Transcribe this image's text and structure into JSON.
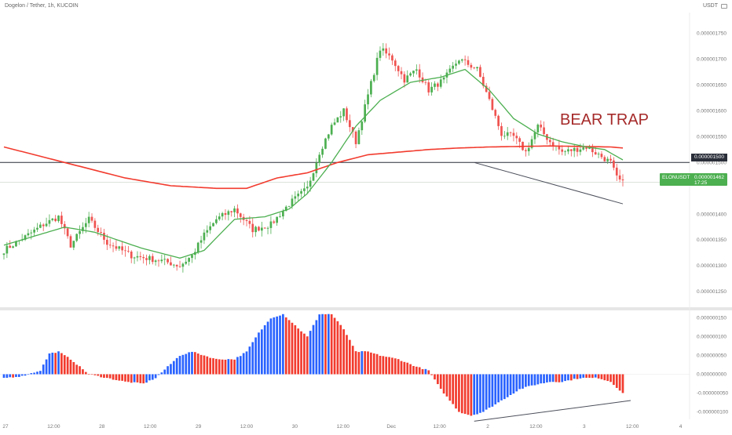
{
  "header": {
    "title": "Dogelon / Tether, 1h, KUCOIN",
    "currency": "USDT"
  },
  "annotations": {
    "bear_trap": "BEAR TRAP"
  },
  "price_tags": {
    "horizontal_level": "0.000001500",
    "ticker_symbol": "ELONUSDT",
    "last_price": "0.000001462",
    "countdown": "17:25"
  },
  "colors": {
    "up": "#4CAF50",
    "down": "#EF5350",
    "ema_fast": "#4CAF50",
    "ma_slow": "#F23B2E",
    "osc_up": "#2962FF",
    "osc_down": "#F23B2E",
    "level_line": "#2A2E39",
    "trend_line": "#4B4E5A",
    "axis_text": "#777777"
  },
  "chart_data": [
    {
      "type": "candlestick",
      "ylim": [
        1.22e-06,
        1.79e-06
      ],
      "y_ticks": [
        "0.000001750",
        "0.000001700",
        "0.000001650",
        "0.000001600",
        "0.000001550",
        "0.000001500",
        "0.000001400",
        "0.000001350",
        "0.000001300",
        "0.000001250"
      ],
      "x_ticks": [
        "27",
        "12:00",
        "28",
        "12:00",
        "29",
        "12:00",
        "30",
        "12:00",
        "Dec",
        "12:00",
        "2",
        "12:00",
        "3",
        "12:00",
        "4"
      ],
      "horizontal_line": 1.5e-06,
      "price_anchors": [
        [
          0,
          1.33
        ],
        [
          8,
          1.36
        ],
        [
          13,
          1.38
        ],
        [
          18,
          1.395
        ],
        [
          22,
          1.34
        ],
        [
          28,
          1.39
        ],
        [
          34,
          1.345
        ],
        [
          42,
          1.32
        ],
        [
          52,
          1.31
        ],
        [
          58,
          1.3
        ],
        [
          62,
          1.32
        ],
        [
          66,
          1.36
        ],
        [
          70,
          1.39
        ],
        [
          76,
          1.41
        ],
        [
          82,
          1.37
        ],
        [
          88,
          1.38
        ],
        [
          94,
          1.42
        ],
        [
          100,
          1.45
        ],
        [
          104,
          1.52
        ],
        [
          108,
          1.57
        ],
        [
          112,
          1.6
        ],
        [
          116,
          1.54
        ],
        [
          120,
          1.63
        ],
        [
          124,
          1.72
        ],
        [
          128,
          1.7
        ],
        [
          132,
          1.66
        ],
        [
          136,
          1.68
        ],
        [
          140,
          1.64
        ],
        [
          145,
          1.66
        ],
        [
          150,
          1.7
        ],
        [
          156,
          1.68
        ],
        [
          160,
          1.62
        ],
        [
          164,
          1.555
        ],
        [
          168,
          1.55
        ],
        [
          172,
          1.52
        ],
        [
          176,
          1.57
        ],
        [
          180,
          1.54
        ],
        [
          184,
          1.52
        ],
        [
          188,
          1.525
        ],
        [
          192,
          1.53
        ],
        [
          196,
          1.515
        ],
        [
          200,
          1.5
        ],
        [
          202,
          1.47
        ],
        [
          204,
          1.46
        ]
      ],
      "ema_anchors": [
        [
          0,
          1.34
        ],
        [
          20,
          1.375
        ],
        [
          30,
          1.365
        ],
        [
          45,
          1.335
        ],
        [
          58,
          1.315
        ],
        [
          66,
          1.33
        ],
        [
          76,
          1.39
        ],
        [
          86,
          1.395
        ],
        [
          94,
          1.41
        ],
        [
          100,
          1.44
        ],
        [
          108,
          1.5
        ],
        [
          116,
          1.57
        ],
        [
          124,
          1.62
        ],
        [
          134,
          1.655
        ],
        [
          144,
          1.665
        ],
        [
          152,
          1.68
        ],
        [
          160,
          1.64
        ],
        [
          168,
          1.585
        ],
        [
          176,
          1.555
        ],
        [
          184,
          1.54
        ],
        [
          192,
          1.53
        ],
        [
          198,
          1.525
        ],
        [
          204,
          1.505
        ]
      ],
      "ma_anchors": [
        [
          0,
          1.53
        ],
        [
          20,
          1.5
        ],
        [
          40,
          1.47
        ],
        [
          55,
          1.455
        ],
        [
          70,
          1.45
        ],
        [
          80,
          1.45
        ],
        [
          90,
          1.47
        ],
        [
          100,
          1.48
        ],
        [
          110,
          1.5
        ],
        [
          120,
          1.515
        ],
        [
          130,
          1.52
        ],
        [
          140,
          1.525
        ],
        [
          150,
          1.528
        ],
        [
          160,
          1.53
        ],
        [
          170,
          1.531
        ],
        [
          180,
          1.532
        ],
        [
          190,
          1.531
        ],
        [
          200,
          1.53
        ],
        [
          204,
          1.528
        ]
      ],
      "trend_line": [
        [
          1.5e-06,
          155
        ],
        [
          1.42e-06,
          204
        ]
      ]
    },
    {
      "type": "bar",
      "name_hint": "oscillator",
      "ylim": [
        -1.2e-07,
        1.7e-07
      ],
      "y_ticks": [
        "0.000000150",
        "0.000000100",
        "0.000000050",
        "0.000000000",
        "-0.000000050",
        "-0.000000100"
      ],
      "anchors": [
        [
          0,
          -0.01
        ],
        [
          6,
          -0.005
        ],
        [
          12,
          0.01
        ],
        [
          15,
          0.055
        ],
        [
          18,
          0.06
        ],
        [
          22,
          0.04
        ],
        [
          28,
          0.0
        ],
        [
          34,
          -0.01
        ],
        [
          40,
          -0.02
        ],
        [
          46,
          -0.025
        ],
        [
          50,
          -0.01
        ],
        [
          54,
          0.02
        ],
        [
          58,
          0.05
        ],
        [
          62,
          0.06
        ],
        [
          66,
          0.05
        ],
        [
          70,
          0.04
        ],
        [
          76,
          0.04
        ],
        [
          80,
          0.06
        ],
        [
          84,
          0.11
        ],
        [
          88,
          0.15
        ],
        [
          92,
          0.16
        ],
        [
          96,
          0.13
        ],
        [
          100,
          0.1
        ],
        [
          104,
          0.16
        ],
        [
          108,
          0.16
        ],
        [
          112,
          0.12
        ],
        [
          116,
          0.06
        ],
        [
          120,
          0.06
        ],
        [
          124,
          0.05
        ],
        [
          130,
          0.04
        ],
        [
          136,
          0.02
        ],
        [
          140,
          0.01
        ],
        [
          144,
          -0.04
        ],
        [
          150,
          -0.1
        ],
        [
          154,
          -0.11
        ],
        [
          158,
          -0.1
        ],
        [
          162,
          -0.08
        ],
        [
          166,
          -0.06
        ],
        [
          170,
          -0.04
        ],
        [
          174,
          -0.03
        ],
        [
          180,
          -0.02
        ],
        [
          184,
          -0.02
        ],
        [
          190,
          -0.01
        ],
        [
          196,
          -0.01
        ],
        [
          200,
          -0.02
        ],
        [
          204,
          -0.05
        ]
      ],
      "trend_line": [
        [
          -1.25e-07,
          155
        ],
        [
          -7e-08,
          204
        ]
      ]
    }
  ]
}
